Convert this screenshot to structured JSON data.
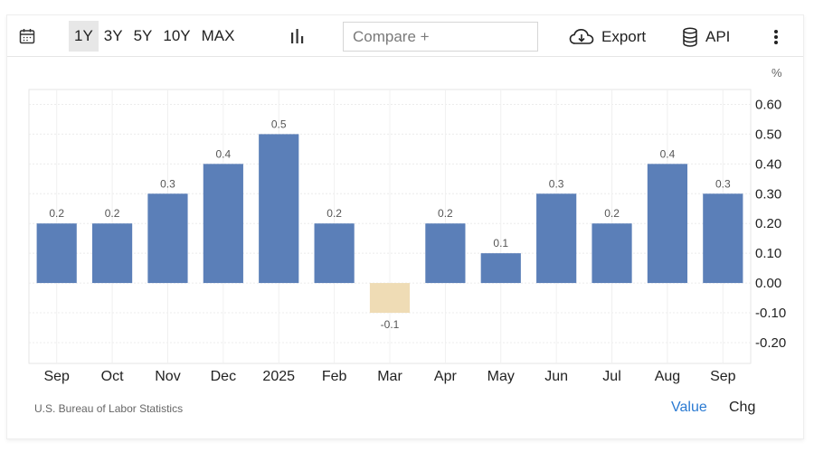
{
  "toolbar": {
    "ranges": [
      "1Y",
      "3Y",
      "5Y",
      "10Y",
      "MAX"
    ],
    "active_range": "1Y",
    "compare_placeholder": "Compare +",
    "export_label": "Export",
    "api_label": "API"
  },
  "icons": {
    "calendar": "calendar-icon",
    "chart_type": "bar-chart-icon",
    "export": "cloud-download-icon",
    "api": "database-icon",
    "more": "more-vertical-icon"
  },
  "colors": {
    "positive_bar": "#5b7fb8",
    "negative_bar": "#efdcb5",
    "active_link": "#2a7ad2"
  },
  "chart_data": {
    "type": "bar",
    "unit": "%",
    "categories": [
      "Sep",
      "Oct",
      "Nov",
      "Dec",
      "2025",
      "Feb",
      "Mar",
      "Apr",
      "May",
      "Jun",
      "Jul",
      "Aug",
      "Sep"
    ],
    "values": [
      0.2,
      0.2,
      0.3,
      0.4,
      0.5,
      0.2,
      -0.1,
      0.2,
      0.1,
      0.3,
      0.2,
      0.4,
      0.3
    ],
    "value_labels": [
      "0.2",
      "0.2",
      "0.3",
      "0.4",
      "0.5",
      "0.2",
      "-0.1",
      "0.2",
      "0.1",
      "0.3",
      "0.2",
      "0.4",
      "0.3"
    ],
    "y_ticks": [
      0.6,
      0.5,
      0.4,
      0.3,
      0.2,
      0.1,
      0.0,
      -0.1,
      -0.2
    ],
    "y_tick_labels": [
      "0.60",
      "0.50",
      "0.40",
      "0.30",
      "0.20",
      "0.10",
      "0.00",
      "-0.10",
      "-0.20"
    ],
    "ylim": [
      -0.27,
      0.65
    ],
    "grid": true,
    "legend": "none"
  },
  "footer": {
    "source": "U.S. Bureau of Labor Statistics",
    "value_label": "Value",
    "chg_label": "Chg"
  }
}
